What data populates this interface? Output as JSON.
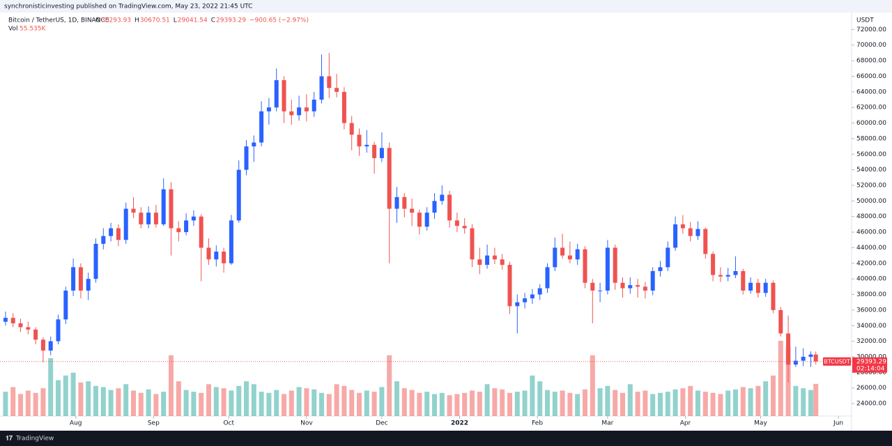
{
  "header": {
    "publisher": "synchronisticinvesting published on TradingView.com, May 23, 2022 21:45 UTC",
    "symbol": "Bitcoin / TetherUS, 1D, BINANCE",
    "o_prefix": "O",
    "h_prefix": "H",
    "l_prefix": "L",
    "c_prefix": "C",
    "change": "−900.65 (−2.97%)",
    "vol_label": "Vol",
    "vol_value": "55.535K",
    "currency": "USDT",
    "ticker": "BTCUSDT",
    "countdown": "02:14:04",
    "brand": "TradingView"
  },
  "chart_data": {
    "type": "candlestick",
    "up_color": "#2962ff",
    "down_color": "#ef5350",
    "vol_up_color": "rgba(38,166,154,0.5)",
    "vol_down_color": "rgba(239,83,80,0.5)",
    "grid": false,
    "xlim": [
      -2.2,
      336.7
    ],
    "ylim": [
      22400,
      74000
    ],
    "xticks": [
      {
        "value": 28,
        "label": "Aug"
      },
      {
        "value": 59,
        "label": "Sep"
      },
      {
        "value": 89,
        "label": "Oct"
      },
      {
        "value": 120,
        "label": "Nov"
      },
      {
        "value": 150,
        "label": "Dec"
      },
      {
        "value": 181,
        "label": "2022"
      },
      {
        "value": 212,
        "label": "Feb"
      },
      {
        "value": 240,
        "label": "Mar"
      },
      {
        "value": 271,
        "label": "Apr"
      },
      {
        "value": 301,
        "label": "May"
      },
      {
        "value": 332,
        "label": "Jun"
      }
    ],
    "yticks": [
      {
        "value": 24000,
        "label": "24000.00"
      },
      {
        "value": 26000,
        "label": "26000.00"
      },
      {
        "value": 28000,
        "label": "28000.00"
      },
      {
        "value": 30000,
        "label": "30000.00"
      },
      {
        "value": 32000,
        "label": "32000.00"
      },
      {
        "value": 34000,
        "label": "34000.00"
      },
      {
        "value": 36000,
        "label": "36000.00"
      },
      {
        "value": 38000,
        "label": "38000.00"
      },
      {
        "value": 40000,
        "label": "40000.00"
      },
      {
        "value": 42000,
        "label": "42000.00"
      },
      {
        "value": 44000,
        "label": "44000.00"
      },
      {
        "value": 46000,
        "label": "46000.00"
      },
      {
        "value": 48000,
        "label": "48000.00"
      },
      {
        "value": 50000,
        "label": "50000.00"
      },
      {
        "value": 52000,
        "label": "52000.00"
      },
      {
        "value": 54000,
        "label": "54000.00"
      },
      {
        "value": 56000,
        "label": "56000.00"
      },
      {
        "value": 58000,
        "label": "58000.00"
      },
      {
        "value": 60000,
        "label": "60000.00"
      },
      {
        "value": 62000,
        "label": "62000.00"
      },
      {
        "value": 64000,
        "label": "64000.00"
      },
      {
        "value": 66000,
        "label": "66000.00"
      },
      {
        "value": 68000,
        "label": "68000.00"
      },
      {
        "value": 70000,
        "label": "70000.00"
      },
      {
        "value": 72000,
        "label": "72000.00"
      }
    ],
    "x": [
      0,
      3,
      6,
      9,
      12,
      15,
      18,
      21,
      24,
      27,
      30,
      33,
      36,
      39,
      42,
      45,
      48,
      51,
      54,
      57,
      60,
      63,
      66,
      69,
      72,
      75,
      78,
      81,
      84,
      87,
      90,
      93,
      96,
      99,
      102,
      105,
      108,
      111,
      114,
      117,
      120,
      123,
      126,
      129,
      132,
      135,
      138,
      141,
      144,
      147,
      150,
      153,
      156,
      159,
      162,
      165,
      168,
      171,
      174,
      177,
      180,
      183,
      186,
      189,
      192,
      195,
      198,
      201,
      204,
      207,
      210,
      213,
      216,
      219,
      222,
      225,
      228,
      231,
      234,
      237,
      240,
      243,
      246,
      249,
      252,
      255,
      258,
      261,
      264,
      267,
      270,
      273,
      276,
      279,
      282,
      285,
      288,
      291,
      294,
      297,
      300,
      303,
      306,
      309,
      312,
      315,
      318,
      321,
      323
    ],
    "ohlc": [
      [
        34500,
        35800,
        34000,
        35000
      ],
      [
        35000,
        35600,
        33800,
        34300
      ],
      [
        34300,
        34900,
        33200,
        33800
      ],
      [
        33800,
        34500,
        32900,
        33500
      ],
      [
        33500,
        33800,
        31600,
        32200
      ],
      [
        32200,
        32500,
        29300,
        30800
      ],
      [
        30800,
        32600,
        30200,
        32000
      ],
      [
        32000,
        35400,
        31600,
        34800
      ],
      [
        34800,
        39000,
        34200,
        38500
      ],
      [
        38500,
        42600,
        37800,
        41500
      ],
      [
        41500,
        42000,
        37500,
        38500
      ],
      [
        38500,
        40800,
        37300,
        40000
      ],
      [
        40000,
        45200,
        39500,
        44500
      ],
      [
        44500,
        46500,
        43800,
        45500
      ],
      [
        45500,
        47200,
        44800,
        46500
      ],
      [
        46500,
        47000,
        44200,
        45000
      ],
      [
        45000,
        49800,
        44500,
        49000
      ],
      [
        49000,
        50500,
        47800,
        48500
      ],
      [
        48500,
        49200,
        46500,
        47000
      ],
      [
        47000,
        49300,
        46500,
        48500
      ],
      [
        48500,
        49500,
        46600,
        47000
      ],
      [
        47000,
        52900,
        46800,
        51500
      ],
      [
        51500,
        52400,
        43000,
        46500
      ],
      [
        46500,
        47400,
        44800,
        46000
      ],
      [
        46000,
        48400,
        45600,
        47500
      ],
      [
        47500,
        48800,
        46800,
        48000
      ],
      [
        48000,
        48300,
        39700,
        44000
      ],
      [
        44000,
        45200,
        41800,
        42500
      ],
      [
        42500,
        44300,
        41600,
        43500
      ],
      [
        43500,
        44000,
        40800,
        42000
      ],
      [
        42000,
        48200,
        41800,
        47500
      ],
      [
        47500,
        55200,
        47200,
        54000
      ],
      [
        54000,
        57800,
        53300,
        57000
      ],
      [
        57000,
        58400,
        55000,
        57500
      ],
      [
        57500,
        62800,
        57000,
        61500
      ],
      [
        61500,
        63200,
        59800,
        62000
      ],
      [
        62000,
        67000,
        61500,
        65500
      ],
      [
        65500,
        66000,
        60000,
        61500
      ],
      [
        61500,
        63000,
        59800,
        61000
      ],
      [
        61000,
        63500,
        60300,
        62000
      ],
      [
        62000,
        63700,
        60200,
        61500
      ],
      [
        61500,
        64000,
        60800,
        63000
      ],
      [
        63000,
        68800,
        62500,
        66000
      ],
      [
        66000,
        69000,
        63200,
        64500
      ],
      [
        64500,
        66300,
        63300,
        64000
      ],
      [
        64000,
        64600,
        59200,
        60000
      ],
      [
        60000,
        60900,
        56500,
        58500
      ],
      [
        58500,
        59300,
        55800,
        57000
      ],
      [
        57000,
        59100,
        56200,
        57200
      ],
      [
        57200,
        57600,
        53500,
        55500
      ],
      [
        55500,
        58800,
        55000,
        56800
      ],
      [
        56800,
        57500,
        42000,
        49000
      ],
      [
        49000,
        51800,
        47200,
        50500
      ],
      [
        50500,
        51000,
        47900,
        49000
      ],
      [
        49000,
        50300,
        46800,
        48500
      ],
      [
        48500,
        48900,
        45700,
        46700
      ],
      [
        46700,
        49200,
        46200,
        48500
      ],
      [
        48500,
        51000,
        47700,
        50000
      ],
      [
        50000,
        52000,
        49500,
        50800
      ],
      [
        50800,
        51300,
        46600,
        47500
      ],
      [
        47500,
        48500,
        46000,
        46800
      ],
      [
        46800,
        47800,
        45800,
        46500
      ],
      [
        46500,
        47000,
        41500,
        42500
      ],
      [
        42500,
        44000,
        40600,
        41800
      ],
      [
        41800,
        44400,
        41300,
        43000
      ],
      [
        43000,
        44000,
        41900,
        42500
      ],
      [
        42500,
        43200,
        41200,
        41800
      ],
      [
        41800,
        42200,
        35500,
        36500
      ],
      [
        36500,
        38000,
        33000,
        37000
      ],
      [
        37000,
        38200,
        36200,
        37500
      ],
      [
        37500,
        38700,
        36800,
        38000
      ],
      [
        38000,
        39300,
        37300,
        38800
      ],
      [
        38800,
        42000,
        38200,
        41500
      ],
      [
        41500,
        45300,
        41000,
        44000
      ],
      [
        44000,
        45800,
        42600,
        43000
      ],
      [
        43000,
        44800,
        42000,
        42500
      ],
      [
        42500,
        44500,
        41800,
        43800
      ],
      [
        43800,
        44200,
        38800,
        39500
      ],
      [
        39500,
        40000,
        34300,
        38500
      ],
      [
        38500,
        39500,
        37000,
        38500
      ],
      [
        38500,
        45000,
        38000,
        44000
      ],
      [
        44000,
        44400,
        38600,
        39500
      ],
      [
        39500,
        40200,
        37600,
        38800
      ],
      [
        38800,
        40200,
        38100,
        39200
      ],
      [
        39200,
        40000,
        37600,
        39000
      ],
      [
        39000,
        39600,
        37500,
        38500
      ],
      [
        38500,
        41500,
        37900,
        41000
      ],
      [
        41000,
        42300,
        40300,
        41500
      ],
      [
        41500,
        44800,
        41000,
        44000
      ],
      [
        44000,
        48000,
        43600,
        47000
      ],
      [
        47000,
        48200,
        45800,
        46500
      ],
      [
        46500,
        47300,
        44800,
        45500
      ],
      [
        45500,
        47400,
        45000,
        46400
      ],
      [
        46400,
        46600,
        42600,
        43200
      ],
      [
        43200,
        43500,
        39700,
        40500
      ],
      [
        40500,
        41500,
        39600,
        40300
      ],
      [
        40300,
        41400,
        39700,
        40500
      ],
      [
        40500,
        42900,
        40100,
        41000
      ],
      [
        41000,
        41300,
        38000,
        38500
      ],
      [
        38500,
        40200,
        38100,
        39500
      ],
      [
        39500,
        40000,
        37600,
        38200
      ],
      [
        38200,
        40000,
        37700,
        39500
      ],
      [
        39500,
        39800,
        35600,
        36000
      ],
      [
        36000,
        36400,
        32600,
        33000
      ],
      [
        33000,
        35300,
        26700,
        29000
      ],
      [
        29000,
        31300,
        28700,
        29500
      ],
      [
        29500,
        31100,
        28800,
        30000
      ],
      [
        30000,
        30700,
        28700,
        30293.93
      ],
      [
        30293.93,
        30670.51,
        29041.54,
        29393.29
      ]
    ],
    "volume": [
      42,
      50,
      38,
      44,
      40,
      48,
      100,
      62,
      70,
      75,
      58,
      60,
      52,
      50,
      45,
      48,
      55,
      44,
      40,
      46,
      38,
      42,
      105,
      60,
      45,
      42,
      40,
      55,
      50,
      48,
      44,
      52,
      60,
      55,
      42,
      40,
      45,
      38,
      44,
      50,
      48,
      46,
      40,
      38,
      55,
      52,
      45,
      40,
      44,
      42,
      50,
      105,
      60,
      48,
      45,
      40,
      42,
      38,
      40,
      36,
      38,
      40,
      44,
      42,
      55,
      48,
      46,
      40,
      42,
      44,
      70,
      60,
      45,
      42,
      44,
      40,
      38,
      46,
      105,
      48,
      52,
      45,
      40,
      55,
      42,
      44,
      38,
      40,
      42,
      46,
      48,
      52,
      44,
      42,
      40,
      38,
      44,
      46,
      50,
      48,
      52,
      60,
      70,
      130,
      120,
      52,
      48,
      45,
      55.535
    ]
  }
}
